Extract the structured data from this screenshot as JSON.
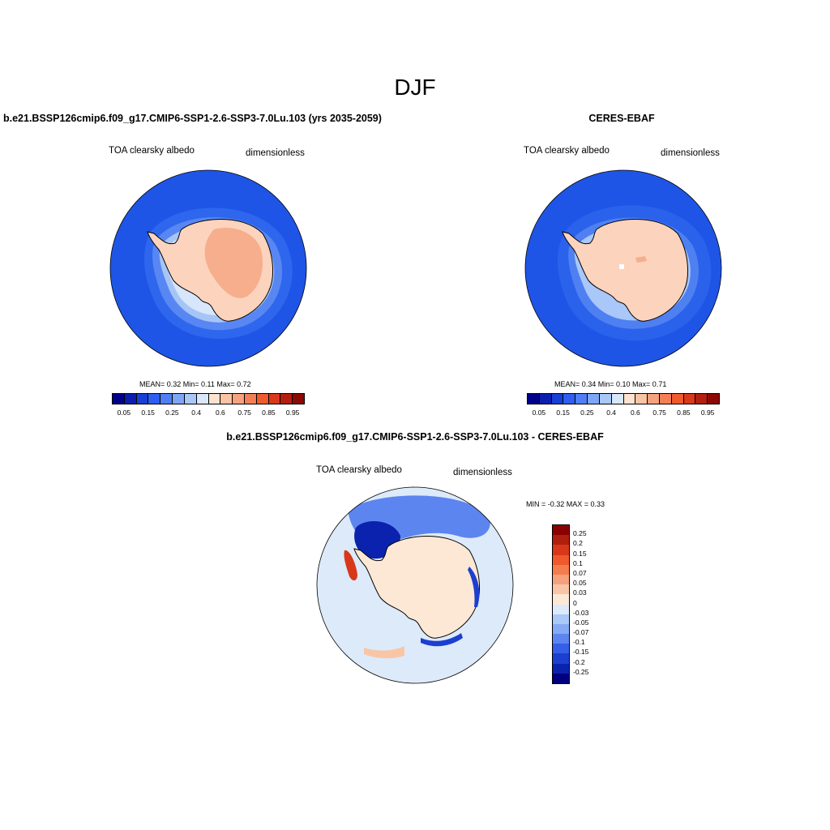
{
  "season": "DJF",
  "panels": [
    {
      "title": "b.e21.BSSP126cmip6.f09_g17.CMIP6-SSP1-2.6-SSP3-7.0Lu.103 (yrs 2035-2059)",
      "variable": "TOA clearsky albedo",
      "units": "dimensionless",
      "stats": "MEAN=   0.32  Min=   0.11  Max=   0.72"
    },
    {
      "title": "CERES-EBAF",
      "variable": "TOA clearsky albedo",
      "units": "dimensionless",
      "stats": "MEAN=   0.34  Min=   0.10  Max=   0.71"
    }
  ],
  "diff": {
    "title": "b.e21.BSSP126cmip6.f09_g17.CMIP6-SSP1-2.6-SSP3-7.0Lu.103 - CERES-EBAF",
    "variable": "TOA clearsky albedo",
    "units": "dimensionless",
    "minmax": "MIN =  -0.32 MAX =   0.33"
  },
  "colorbar": {
    "colors": [
      "#00008b",
      "#0a1fae",
      "#1740d6",
      "#2f5ef0",
      "#4f7ef7",
      "#7ea6f7",
      "#a9c7f8",
      "#d8e7fb",
      "#fde3cf",
      "#f9c3a4",
      "#f6a27e",
      "#f47f56",
      "#ef5a2f",
      "#d9381b",
      "#b51f0f",
      "#8b0a05"
    ],
    "tick_labels": [
      "0.05",
      "0.15",
      "0.25",
      "0.4",
      "0.6",
      "0.75",
      "0.85",
      "0.95"
    ]
  },
  "diff_colorbar": {
    "colors": [
      "#8b0000",
      "#b01e0e",
      "#d8371a",
      "#f0592c",
      "#f57c4f",
      "#f6a07c",
      "#f8c6a6",
      "#fde8d6",
      "#ddeaf9",
      "#aac8f8",
      "#86a9f6",
      "#5d85f0",
      "#355fe8",
      "#1c3fd0",
      "#0b22ae",
      "#000080"
    ],
    "tick_labels": [
      "0.25",
      "0.2",
      "0.15",
      "0.1",
      "0.07",
      "0.05",
      "0.03",
      "0",
      "-0.03",
      "-0.05",
      "-0.07",
      "-0.1",
      "-0.15",
      "-0.2",
      "-0.25"
    ]
  }
}
